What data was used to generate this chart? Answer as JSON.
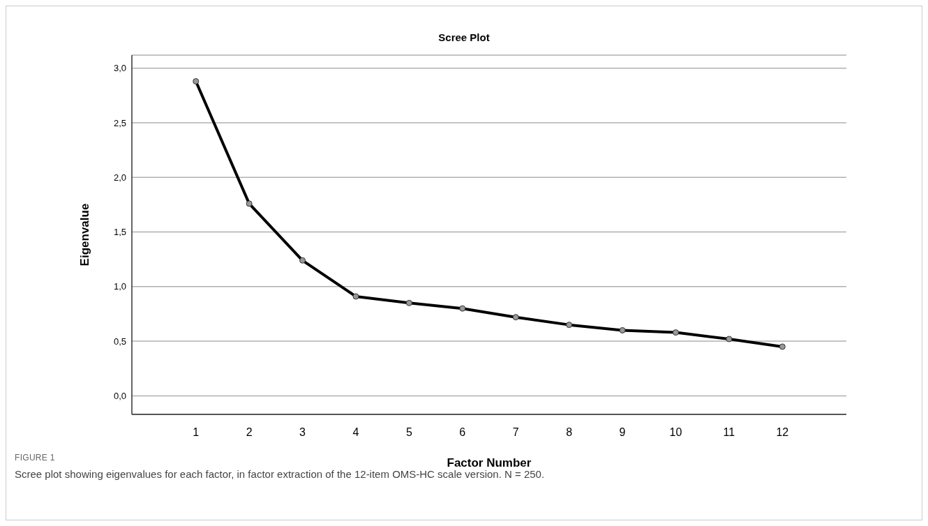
{
  "chart_data": {
    "type": "line",
    "title": "Scree Plot",
    "xlabel": "Factor Number",
    "ylabel": "Eigenvalue",
    "x": [
      1,
      2,
      3,
      4,
      5,
      6,
      7,
      8,
      9,
      10,
      11,
      12
    ],
    "series": [
      {
        "color": "#000000",
        "values": [
          2.88,
          1.76,
          1.24,
          0.91,
          0.85,
          0.8,
          0.72,
          0.65,
          0.6,
          0.58,
          0.52,
          0.45
        ]
      }
    ],
    "xlim": [
      -0.2,
      13.2
    ],
    "xticks": [
      1,
      2,
      3,
      4,
      5,
      6,
      7,
      8,
      9,
      10,
      11,
      12
    ],
    "ylim": [
      -0.17,
      3.12
    ],
    "yticks": [
      {
        "value": 0,
        "label": "0,0"
      },
      {
        "value": 0.5,
        "label": "0,5"
      },
      {
        "value": 1,
        "label": "1,0"
      },
      {
        "value": 1.5,
        "label": "1,5"
      },
      {
        "value": 2,
        "label": "2,0"
      },
      {
        "value": 2.5,
        "label": "2,5"
      },
      {
        "value": 3,
        "label": "3,0"
      }
    ],
    "grid": "y",
    "marker": "circle",
    "line_style": "solid",
    "legend": false,
    "annotations": [
      "FIGURE 1",
      "Scree plot showing eigenvalues for each factor, in factor extraction of the 12-item OMS-HC scale version. N = 250."
    ]
  }
}
